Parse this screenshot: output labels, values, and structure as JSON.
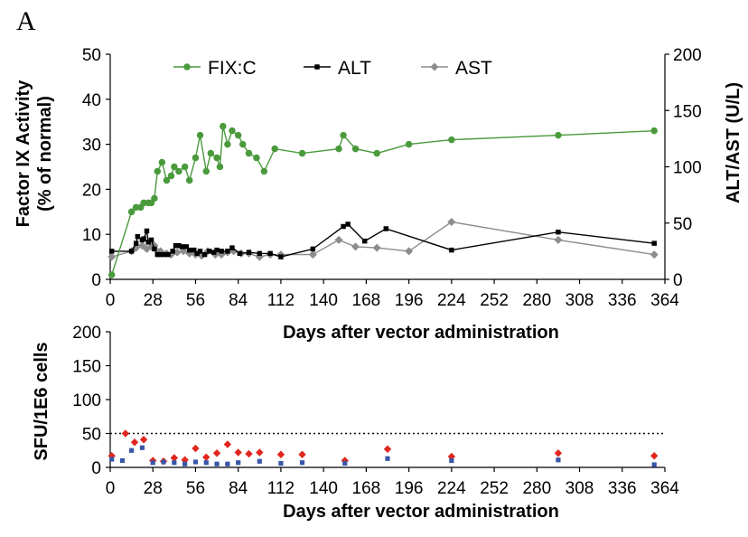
{
  "figure": {
    "panel_label": "A"
  },
  "colors": {
    "fixc": "#4a9a3c",
    "alt": "#000000",
    "ast": "#8c8c8c",
    "red": "#e0271f",
    "blue": "#3a56a8"
  },
  "chart_data": [
    {
      "type": "line",
      "xlabel": "Days  after vector administration",
      "ylabel": [
        "Factor IX Activity",
        "(% of normal)"
      ],
      "y2label": "ALT/AST (U/L)",
      "xlim": [
        0,
        364
      ],
      "ylim": [
        0,
        50
      ],
      "y2lim": [
        0,
        200
      ],
      "xticks": [
        "0",
        "28",
        "56",
        "84",
        "112",
        "140",
        "168",
        "196",
        "224",
        "252",
        "280",
        "308",
        "336",
        "364"
      ],
      "yticks": [
        "0",
        "10",
        "20",
        "30",
        "40",
        "50"
      ],
      "y2ticks": [
        "0",
        "50",
        "100",
        "150",
        "200"
      ],
      "legend_position": "top",
      "series": [
        {
          "name": "FIX:C",
          "axis": "left",
          "marker": "circle",
          "color": "#4a9a3c",
          "x": [
            1,
            14,
            17,
            20,
            22,
            25,
            27,
            29,
            31,
            34,
            37,
            40,
            42,
            45,
            49,
            52,
            56,
            59,
            63,
            66,
            70,
            72,
            74,
            77,
            80,
            84,
            87,
            91,
            96,
            101,
            108,
            126,
            150,
            153,
            161,
            175,
            196,
            224,
            294,
            357
          ],
          "y": [
            1,
            15,
            16,
            16,
            17,
            17,
            17,
            18,
            24,
            26,
            22,
            23,
            25,
            24,
            25,
            22,
            27,
            32,
            24,
            28,
            27,
            25,
            34,
            30,
            33,
            32,
            30,
            28,
            27,
            24,
            29,
            28,
            29,
            32,
            29,
            28,
            30,
            31,
            32,
            33
          ]
        },
        {
          "name": "ALT",
          "axis": "right",
          "marker": "square",
          "color": "#000000",
          "x": [
            1,
            14,
            17,
            18,
            21,
            22,
            24,
            25,
            27,
            29,
            31,
            33,
            35,
            38,
            41,
            43,
            45,
            47,
            50,
            52,
            55,
            57,
            59,
            62,
            65,
            68,
            70,
            73,
            77,
            80,
            85,
            91,
            98,
            105,
            112,
            133,
            153,
            156,
            167,
            181,
            224,
            294,
            357
          ],
          "y": [
            25,
            25,
            32,
            38,
            35,
            36,
            43,
            33,
            35,
            27,
            22,
            22,
            22,
            22,
            25,
            30,
            30,
            29,
            29,
            26,
            26,
            23,
            25,
            22,
            25,
            24,
            26,
            25,
            25,
            28,
            23,
            24,
            23,
            23,
            20,
            27,
            47,
            49,
            34,
            45,
            26,
            42,
            32
          ]
        },
        {
          "name": "AST",
          "axis": "right",
          "marker": "diamond",
          "color": "#8c8c8c",
          "x": [
            1,
            14,
            17,
            21,
            24,
            27,
            29,
            33,
            37,
            40,
            44,
            48,
            52,
            56,
            60,
            64,
            69,
            73,
            77,
            81,
            86,
            91,
            98,
            105,
            112,
            133,
            150,
            161,
            175,
            196,
            224,
            294,
            357
          ],
          "y": [
            20,
            25,
            28,
            30,
            27,
            29,
            30,
            25,
            23,
            22,
            24,
            25,
            23,
            22,
            21,
            25,
            22,
            22,
            24,
            25,
            23,
            23,
            20,
            22,
            22,
            22,
            35,
            29,
            28,
            25,
            51,
            35,
            22
          ]
        }
      ]
    },
    {
      "type": "scatter",
      "xlabel": "Days  after vector administration",
      "ylabel": "SFU/1E6 cells",
      "xlim": [
        0,
        364
      ],
      "ylim": [
        0,
        200
      ],
      "xticks": [
        "0",
        "28",
        "56",
        "84",
        "112",
        "140",
        "168",
        "196",
        "224",
        "252",
        "280",
        "308",
        "336",
        "364"
      ],
      "yticks": [
        "0",
        "50",
        "100",
        "150",
        "200"
      ],
      "reference_line": {
        "y": 50,
        "style": "dotted"
      },
      "series": [
        {
          "marker": "diamond",
          "color": "#e0271f",
          "x": [
            1,
            10,
            16,
            22,
            28,
            35,
            42,
            49,
            56,
            63,
            70,
            77,
            84,
            91,
            98,
            112,
            126,
            154,
            182,
            224,
            294,
            357
          ],
          "y": [
            17,
            50,
            37,
            41,
            10,
            9,
            14,
            11,
            28,
            15,
            21,
            34,
            22,
            20,
            22,
            19,
            19,
            10,
            27,
            16,
            21,
            17
          ]
        },
        {
          "marker": "square",
          "color": "#3a56a8",
          "x": [
            1,
            8,
            14,
            21,
            28,
            35,
            42,
            49,
            56,
            63,
            70,
            77,
            84,
            98,
            112,
            126,
            154,
            182,
            224,
            294,
            357
          ],
          "y": [
            12,
            10,
            25,
            29,
            7,
            8,
            7,
            5,
            8,
            7,
            5,
            5,
            7,
            9,
            6,
            7,
            6,
            13,
            10,
            11,
            4
          ]
        }
      ]
    }
  ]
}
